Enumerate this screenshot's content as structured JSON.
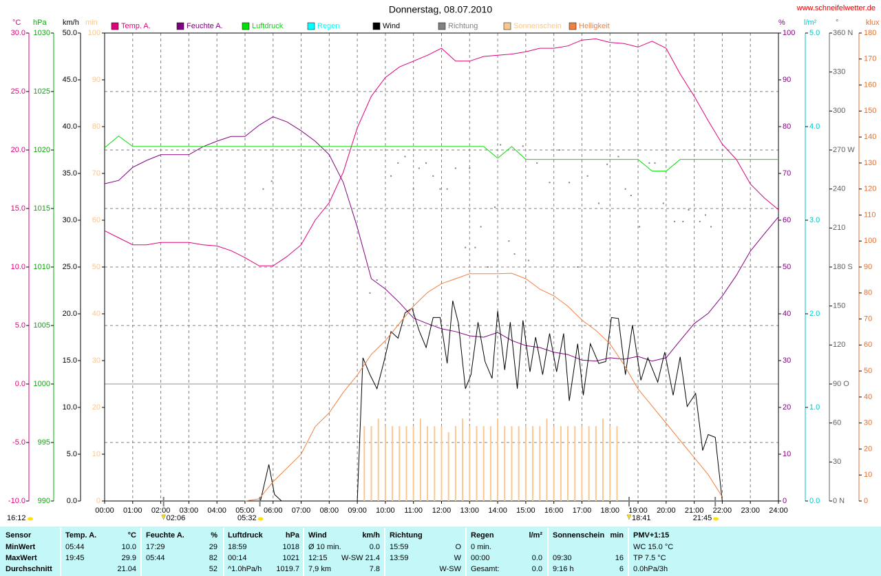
{
  "chart_data": {
    "type": "line",
    "title": "Donnerstag, 08.07.2010",
    "source": "www.schneifelwetter.de",
    "time_label": "16:12",
    "grid": true,
    "grid_axis": "°C",
    "zero_line": true,
    "xlim": [
      0,
      24
    ],
    "xticks": [
      {
        "value": 0,
        "label": "00:00"
      },
      {
        "value": 1,
        "label": "01:00"
      },
      {
        "value": 2,
        "label": "02:00"
      },
      {
        "value": 3,
        "label": "03:00"
      },
      {
        "value": 4,
        "label": "04:00"
      },
      {
        "value": 5,
        "label": "05:00"
      },
      {
        "value": 6,
        "label": "06:00"
      },
      {
        "value": 7,
        "label": "07:00"
      },
      {
        "value": 8,
        "label": "08:00"
      },
      {
        "value": 9,
        "label": "09:00"
      },
      {
        "value": 10,
        "label": "10:00"
      },
      {
        "value": 11,
        "label": "11:00"
      },
      {
        "value": 12,
        "label": "12:00"
      },
      {
        "value": 13,
        "label": "13:00"
      },
      {
        "value": 14,
        "label": "14:00"
      },
      {
        "value": 15,
        "label": "15:00"
      },
      {
        "value": 16,
        "label": "16:00"
      },
      {
        "value": 17,
        "label": "17:00"
      },
      {
        "value": 18,
        "label": "18:00"
      },
      {
        "value": 19,
        "label": "19:00"
      },
      {
        "value": 20,
        "label": "20:00"
      },
      {
        "value": 21,
        "label": "21:00"
      },
      {
        "value": 22,
        "label": "22:00"
      },
      {
        "value": 23,
        "label": "23:00"
      },
      {
        "value": 24,
        "label": "24:00"
      }
    ],
    "axes": [
      {
        "unit": "°C",
        "color": "#e0007a",
        "lim": [
          -10,
          30
        ],
        "ticks": [
          {
            "value": -10,
            "label": "-10.0"
          },
          {
            "value": -5,
            "label": "-5.0"
          },
          {
            "value": 0,
            "label": "0.0"
          },
          {
            "value": 5,
            "label": "5.0"
          },
          {
            "value": 10,
            "label": "10.0"
          },
          {
            "value": 15,
            "label": "15.0"
          },
          {
            "value": 20,
            "label": "20.0"
          },
          {
            "value": 25,
            "label": "25.0"
          },
          {
            "value": 30,
            "label": "30.0"
          }
        ]
      },
      {
        "unit": "hPa",
        "color": "#00b000",
        "lim": [
          990,
          1030
        ],
        "ticks": [
          990,
          995,
          1000,
          1005,
          1010,
          1015,
          1020,
          1025,
          1030
        ]
      },
      {
        "unit": "km/h",
        "color": "#000000",
        "lim": [
          0,
          50
        ],
        "ticks": [
          {
            "value": 0,
            "label": "0.0"
          },
          {
            "value": 5,
            "label": "5.0"
          },
          {
            "value": 10,
            "label": "10.0"
          },
          {
            "value": 15,
            "label": "15.0"
          },
          {
            "value": 20,
            "label": "20.0"
          },
          {
            "value": 25,
            "label": "25.0"
          },
          {
            "value": 30,
            "label": "30.0"
          },
          {
            "value": 35,
            "label": "35.0"
          },
          {
            "value": 40,
            "label": "40.0"
          },
          {
            "value": 45,
            "label": "45.0"
          },
          {
            "value": 50,
            "label": "50.0"
          }
        ]
      },
      {
        "unit": "min",
        "color": "#f8c890",
        "lim": [
          0,
          100
        ],
        "ticks": [
          0,
          10,
          20,
          30,
          40,
          50,
          60,
          70,
          80,
          90,
          100
        ]
      },
      {
        "unit": "%",
        "color": "#800080",
        "lim": [
          0,
          100
        ],
        "ticks": [
          0,
          10,
          20,
          30,
          40,
          50,
          60,
          70,
          80,
          90,
          100
        ]
      },
      {
        "unit": "l/m²",
        "color": "#00c8c8",
        "lim": [
          0,
          5
        ],
        "ticks": [
          {
            "value": 0,
            "label": "0.0"
          },
          {
            "value": 1,
            "label": "1.0"
          },
          {
            "value": 2,
            "label": "2.0"
          },
          {
            "value": 3,
            "label": "3.0"
          },
          {
            "value": 4,
            "label": "4.0"
          },
          {
            "value": 5,
            "label": "5.0"
          }
        ]
      },
      {
        "unit": "°",
        "color": "#606060",
        "lim": [
          0,
          360
        ],
        "ticks": [
          {
            "value": 0,
            "label": "0   N"
          },
          30,
          60,
          {
            "value": 90,
            "label": "90   O"
          },
          120,
          150,
          {
            "value": 180,
            "label": "180 S"
          },
          210,
          240,
          {
            "value": 270,
            "label": "270 W"
          },
          300,
          330,
          {
            "value": 360,
            "label": "360 N"
          }
        ]
      },
      {
        "unit": "klux",
        "color": "#e07030",
        "lim": [
          0,
          180
        ],
        "ticks": [
          0,
          10,
          20,
          30,
          40,
          50,
          60,
          70,
          80,
          90,
          100,
          110,
          120,
          130,
          140,
          150,
          160,
          170,
          180
        ]
      }
    ],
    "x": [
      0,
      0.5,
      1,
      1.5,
      2,
      2.5,
      3,
      3.5,
      4,
      4.5,
      5,
      5.5,
      6,
      6.5,
      7,
      7.5,
      8,
      8.5,
      9,
      9.5,
      10,
      10.5,
      11,
      11.5,
      12,
      12.5,
      13,
      13.5,
      14,
      14.5,
      15,
      15.5,
      16,
      16.5,
      17,
      17.5,
      18,
      18.5,
      19,
      19.5,
      20,
      20.5,
      21,
      21.5,
      22,
      22.5,
      23,
      23.5,
      24
    ],
    "series": [
      {
        "name": "Temp. A.",
        "color": "#e0007a",
        "axis": "°C",
        "values": [
          13.1,
          12.5,
          11.9,
          11.9,
          12.1,
          12.1,
          12.1,
          11.9,
          11.8,
          11.4,
          10.8,
          10.1,
          10.1,
          10.9,
          11.9,
          14.0,
          15.5,
          18.1,
          21.9,
          24.6,
          26.2,
          27.1,
          27.6,
          28.1,
          28.7,
          27.6,
          27.6,
          28.0,
          28.1,
          28.2,
          28.4,
          28.7,
          28.7,
          28.9,
          29.4,
          29.5,
          29.2,
          29.1,
          28.8,
          29.3,
          28.7,
          26.5,
          24.6,
          22.5,
          20.5,
          19.2,
          17.1,
          15.9,
          14.9
        ]
      },
      {
        "name": "Feuchte A.",
        "color": "#800080",
        "axis": "%",
        "values": [
          67.8,
          68.5,
          71.3,
          72.8,
          74.0,
          74.0,
          74.0,
          75.7,
          76.9,
          77.9,
          77.9,
          80.3,
          82.1,
          81.0,
          79.1,
          76.9,
          74.0,
          68.1,
          58.5,
          47.5,
          45.3,
          42.4,
          39.1,
          37.9,
          36.8,
          36.2,
          35.3,
          35.0,
          36.0,
          34.3,
          33.2,
          32.8,
          31.8,
          31.3,
          30.1,
          29.9,
          30.6,
          30.3,
          30.9,
          29.9,
          30.6,
          34.3,
          37.9,
          40.1,
          43.8,
          48.2,
          53.4,
          57.1,
          60.7
        ]
      },
      {
        "name": "Luftdruck",
        "color": "#00e000",
        "axis": "hPa",
        "values": [
          1020.2,
          1021.2,
          1020.3,
          1020.3,
          1020.3,
          1020.3,
          1020.3,
          1020.3,
          1020.3,
          1020.3,
          1020.3,
          1020.3,
          1020.3,
          1020.3,
          1020.3,
          1020.3,
          1020.3,
          1020.3,
          1020.3,
          1020.3,
          1020.3,
          1020.3,
          1020.3,
          1020.3,
          1020.3,
          1020.3,
          1020.3,
          1020.3,
          1019.3,
          1020.3,
          1019.2,
          1019.2,
          1019.2,
          1019.2,
          1019.2,
          1019.2,
          1019.2,
          1019.2,
          1019.2,
          1018.2,
          1018.2,
          1019.2,
          1019.2,
          1019.2,
          1019.2,
          1019.2,
          1019.2,
          1019.2,
          1019.2
        ]
      },
      {
        "name": "Regen",
        "color": "#00ffff",
        "axis": "l/m²"
      },
      {
        "name": "Wind",
        "color": "#000000",
        "axis": "km/h",
        "x": [
          0,
          5.55,
          5.85,
          6.05,
          6.3,
          9.0,
          9.2,
          9.45,
          9.7,
          9.95,
          10.2,
          10.45,
          10.7,
          10.95,
          11.2,
          11.45,
          11.7,
          11.95,
          12.2,
          12.4,
          12.6,
          12.85,
          13.05,
          13.3,
          13.55,
          13.8,
          14.0,
          14.25,
          14.45,
          14.7,
          14.9,
          15.15,
          15.35,
          15.6,
          15.85,
          16.1,
          16.35,
          16.55,
          16.85,
          17.05,
          17.3,
          17.6,
          17.85,
          18.05,
          18.3,
          18.55,
          18.8,
          19.1,
          19.35,
          19.7,
          19.95,
          20.25,
          20.5,
          20.75,
          21.05,
          21.3,
          21.5,
          21.75,
          22.0
        ],
        "values": [
          0,
          0,
          3.9,
          0.7,
          0,
          0,
          15.3,
          13.5,
          12.0,
          14.9,
          18.1,
          17.4,
          20.1,
          20.6,
          18.2,
          16.4,
          19.6,
          19.6,
          14.7,
          21.4,
          19.0,
          12.0,
          13.5,
          19.1,
          14.9,
          13.1,
          20.3,
          14.0,
          19.1,
          12.0,
          19.3,
          13.8,
          17.5,
          13.5,
          17.9,
          13.8,
          17.9,
          10.7,
          16.8,
          11.3,
          16.8,
          14.7,
          14.9,
          19.6,
          19.5,
          13.5,
          18.8,
          12.9,
          15.3,
          12.7,
          15.9,
          11.3,
          15.4,
          10.1,
          11.5,
          5.4,
          7.1,
          6.8,
          0
        ]
      },
      {
        "name": "Richtung",
        "color": "#808080",
        "axis": "°",
        "mode": "dots",
        "x": [
          5.65,
          5.95,
          9.45,
          9.7,
          10.2,
          10.45,
          10.7,
          11.0,
          11.2,
          11.45,
          11.7,
          11.95,
          12.2,
          12.5,
          12.85,
          13.0,
          13.2,
          13.4,
          13.65,
          13.9,
          14.1,
          14.4,
          14.6,
          14.9,
          15.1,
          15.4,
          15.85,
          16.2,
          16.55,
          16.85,
          17.2,
          17.6,
          17.9,
          18.3,
          18.55,
          18.75,
          19.05,
          19.4,
          19.6,
          19.9,
          20.3,
          20.6,
          20.8,
          21.2,
          21.4,
          21.6
        ],
        "values": [
          240,
          246,
          160,
          170,
          250,
          260,
          265,
          240,
          256,
          260,
          250,
          240,
          240,
          256,
          195,
          256,
          195,
          211,
          180,
          226,
          274,
          200,
          190,
          273,
          185,
          260,
          245,
          270,
          245,
          180,
          250,
          229,
          259,
          265,
          240,
          235,
          211,
          260,
          260,
          229,
          215,
          215,
          224,
          215,
          220,
          211
        ]
      },
      {
        "name": "Sonnenschein",
        "color": "#f8c890",
        "axis": "min",
        "mode": "bars",
        "x": [
          9.25,
          9.5,
          9.75,
          10,
          10.25,
          10.5,
          10.75,
          11,
          11.25,
          11.5,
          11.75,
          12,
          12.25,
          12.5,
          12.75,
          13,
          13.25,
          13.5,
          13.75,
          14,
          14.25,
          14.5,
          14.75,
          15,
          15.25,
          15.5,
          15.75,
          16,
          16.25,
          16.5,
          16.75,
          17,
          17.25,
          17.5,
          17.75,
          18,
          18.25
        ],
        "values": [
          16,
          16,
          17.6,
          16,
          16,
          16,
          16,
          16,
          17.6,
          16,
          16,
          16,
          14.7,
          16,
          17.6,
          16,
          16,
          16,
          16,
          17.6,
          16,
          16,
          16,
          16,
          16,
          16,
          17.6,
          16,
          16,
          16,
          16,
          16,
          16,
          16,
          17.6,
          16,
          16
        ]
      },
      {
        "name": "Helligkeit",
        "color": "#f08040",
        "axis": "klux",
        "values": [
          null,
          null,
          null,
          null,
          null,
          null,
          null,
          null,
          null,
          null,
          0,
          0.8,
          7.4,
          12.7,
          18.0,
          28.6,
          33.9,
          41.8,
          48.4,
          56.4,
          61.7,
          68.3,
          74.9,
          80.2,
          83.6,
          85.5,
          87.4,
          87.4,
          87.4,
          87.6,
          85.5,
          81.5,
          78.9,
          74.9,
          69.6,
          65.6,
          60.4,
          52.4,
          43.1,
          36.5,
          29.9,
          23.3,
          16.7,
          10.1,
          1.6,
          null,
          null,
          null,
          null
        ]
      }
    ],
    "markers": [
      {
        "x": 2.1,
        "label": "02:06",
        "icon": "moon"
      },
      {
        "x": 5.53,
        "label": "05:32",
        "icon": "sun"
      },
      {
        "x": 18.68,
        "label": "18:41",
        "icon": "moon"
      },
      {
        "x": 21.75,
        "label": "21:45",
        "icon": "sun"
      }
    ]
  },
  "summary": {
    "row_labels": [
      "Sensor",
      "MinWert",
      "MaxWert",
      "Durchschnitt"
    ],
    "groups": [
      {
        "name": "Temp. A.",
        "unit": "°C",
        "rows": [
          [
            "05:44",
            "10.0"
          ],
          [
            "19:45",
            "29.9"
          ],
          [
            null,
            "21.04"
          ]
        ]
      },
      {
        "name": "Feuchte A.",
        "unit": "%",
        "rows": [
          [
            "17:29",
            "29"
          ],
          [
            "05:44",
            "82"
          ],
          [
            null,
            "52"
          ]
        ]
      },
      {
        "name": "Luftdruck",
        "unit": "hPa",
        "rows": [
          [
            "18:59",
            "1018"
          ],
          [
            "00:14",
            "1021"
          ],
          [
            "^1.0hPa/h",
            "1019.7"
          ]
        ]
      },
      {
        "name": "Wind",
        "unit": "km/h",
        "rows": [
          [
            "Ø 10 min.",
            "0.0"
          ],
          [
            "12:15",
            "W-SW 21.4"
          ],
          [
            "7,9 km",
            "7.8"
          ]
        ]
      },
      {
        "name": "Richtung",
        "unit": null,
        "rows": [
          [
            "15:59",
            "O"
          ],
          [
            "13:59",
            "W"
          ],
          [
            null,
            "W-SW"
          ]
        ]
      },
      {
        "name": "Regen",
        "unit": "l/m²",
        "rows": [
          [
            "0 min.",
            null
          ],
          [
            "00:00",
            "0.0"
          ],
          [
            "Gesamt:",
            "0.0"
          ]
        ]
      },
      {
        "name": "Sonnenschein",
        "unit": "min",
        "rows": [
          [
            null,
            null
          ],
          [
            "09:30",
            "16"
          ],
          [
            "9:16 h",
            "6"
          ]
        ]
      },
      {
        "name": "PMV+1:15",
        "unit": null,
        "rows": [
          [
            "WC 15.0 °C",
            null
          ],
          [
            "TP 7.5 °C",
            null
          ],
          [
            "0.0hPa/3h",
            null
          ]
        ]
      }
    ]
  }
}
